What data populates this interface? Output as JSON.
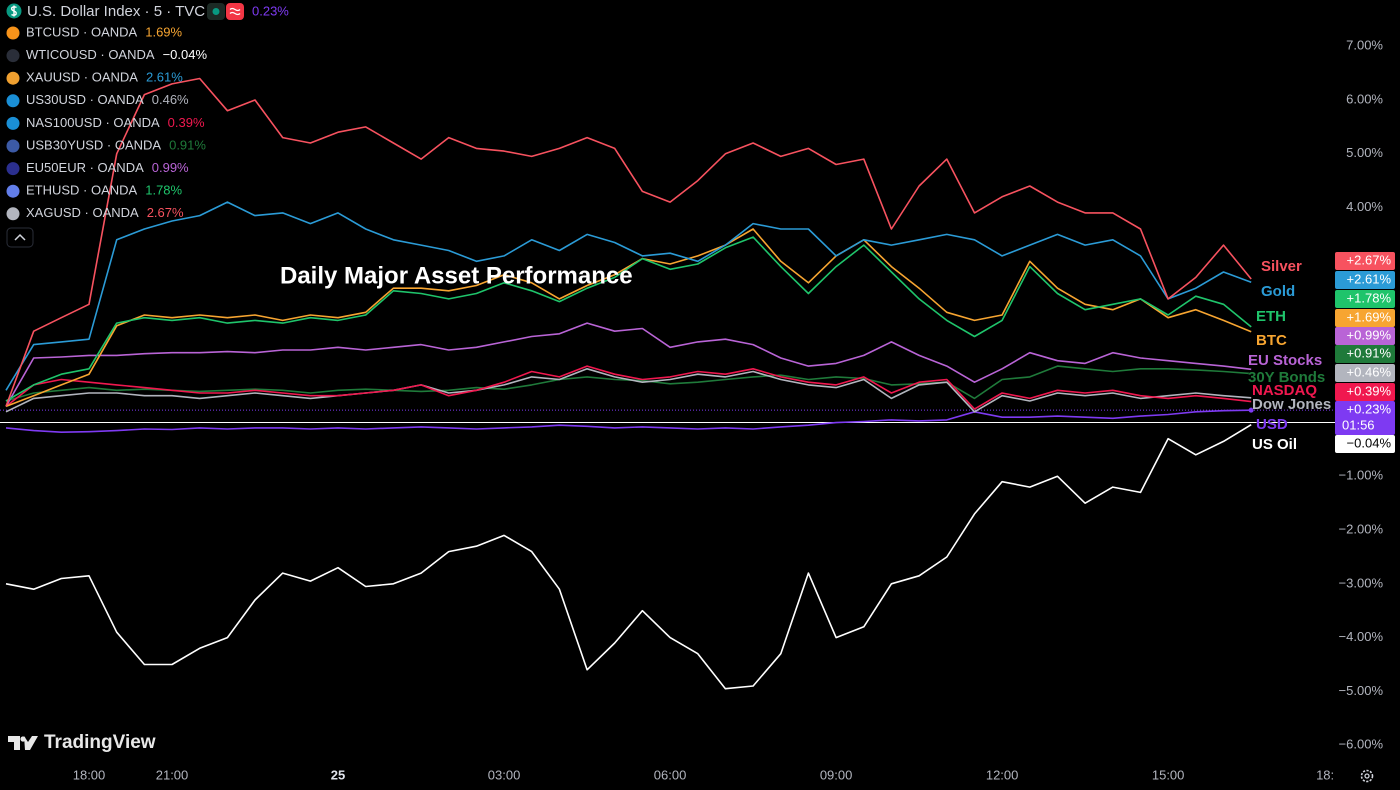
{
  "chart_data": {
    "type": "line",
    "title": "U.S. Dollar Index · 5 · TVC",
    "annotation": "Daily Major Asset Performance",
    "watermark": "TradingView",
    "categories": [
      null,
      null,
      null,
      "18:00",
      null,
      null,
      "21:00",
      null,
      null,
      null,
      null,
      null,
      "25",
      null,
      null,
      null,
      null,
      null,
      "03:00",
      null,
      null,
      null,
      null,
      null,
      "06:00",
      null,
      null,
      null,
      null,
      null,
      "09:00",
      null,
      null,
      null,
      null,
      null,
      "12:00",
      null,
      null,
      null,
      null,
      null,
      "15:00",
      null,
      null,
      null,
      null,
      null,
      "18:"
    ],
    "ylim": [
      -6.37,
      7.86
    ],
    "yticks": [
      {
        "value": 7,
        "label": "7.00%"
      },
      {
        "value": 6,
        "label": "6.00%"
      },
      {
        "value": 5,
        "label": "5.00%"
      },
      {
        "value": 4,
        "label": "4.00%"
      },
      {
        "value": -1,
        "label": "−1.00%"
      },
      {
        "value": -2,
        "label": "−2.00%"
      },
      {
        "value": -3,
        "label": "−3.00%"
      },
      {
        "value": -4,
        "label": "−4.00%"
      },
      {
        "value": -5,
        "label": "−5.00%"
      },
      {
        "value": -6,
        "label": "−6.00%"
      }
    ],
    "grid": false,
    "series": [
      {
        "name": "USD",
        "color": "#7e3af2",
        "legend_label": "0.23%",
        "price_label": "+0.23%",
        "countdown": "01:56",
        "values": [
          -0.1,
          -0.15,
          -0.18,
          -0.17,
          -0.15,
          -0.12,
          -0.13,
          -0.1,
          -0.12,
          -0.1,
          -0.1,
          -0.12,
          -0.1,
          -0.12,
          -0.1,
          -0.08,
          -0.1,
          -0.12,
          -0.1,
          -0.08,
          -0.05,
          -0.07,
          -0.1,
          -0.08,
          -0.1,
          -0.12,
          -0.1,
          -0.12,
          -0.08,
          -0.05,
          0.0,
          0.02,
          0.05,
          0.03,
          0.05,
          0.2,
          0.1,
          0.1,
          0.12,
          0.1,
          0.08,
          0.12,
          0.15,
          0.2,
          0.22,
          0.23,
          null,
          null,
          null
        ]
      },
      {
        "name": "BTC",
        "symbol": "BTCUSD · OANDA",
        "color": "#f7a531",
        "legend_label": "1.69%",
        "price_label": "+1.69%",
        "values": [
          0.3,
          0.5,
          0.7,
          0.9,
          1.8,
          2.0,
          1.95,
          2.0,
          1.95,
          2.0,
          1.9,
          2.0,
          1.95,
          2.05,
          2.5,
          2.5,
          2.45,
          2.55,
          2.75,
          2.6,
          2.3,
          2.55,
          2.75,
          3.05,
          2.95,
          3.1,
          3.3,
          3.6,
          3.0,
          2.6,
          3.1,
          3.4,
          2.9,
          2.5,
          2.05,
          1.9,
          2.0,
          3.0,
          2.5,
          2.2,
          2.1,
          2.3,
          1.95,
          2.1,
          1.9,
          1.69,
          null,
          null,
          null
        ]
      },
      {
        "name": "US Oil",
        "symbol": "WTICOUSD · OANDA",
        "color": "#ffffff",
        "legend_label": "−0.04%",
        "price_label": "−0.04%",
        "values": [
          -3.0,
          -3.1,
          -2.9,
          -2.85,
          -3.9,
          -4.5,
          -4.5,
          -4.2,
          -4.0,
          -3.3,
          -2.8,
          -2.95,
          -2.7,
          -3.05,
          -3.0,
          -2.8,
          -2.4,
          -2.3,
          -2.1,
          -2.4,
          -3.1,
          -4.6,
          -4.1,
          -3.5,
          -4.0,
          -4.3,
          -4.95,
          -4.9,
          -4.3,
          -2.8,
          -4.0,
          -3.8,
          -3.0,
          -2.85,
          -2.5,
          -1.7,
          -1.1,
          -1.2,
          -1.0,
          -1.5,
          -1.2,
          -1.3,
          -0.3,
          -0.6,
          -0.35,
          -0.04,
          null,
          null,
          null
        ]
      },
      {
        "name": "Gold",
        "symbol": "XAUUSD · OANDA",
        "color": "#2b9bd6",
        "legend_label": "2.61%",
        "price_label": "+2.61%",
        "values": [
          0.6,
          1.45,
          1.5,
          1.55,
          3.4,
          3.6,
          3.75,
          3.85,
          4.1,
          3.85,
          3.9,
          3.7,
          3.9,
          3.6,
          3.4,
          3.3,
          3.2,
          3.0,
          3.1,
          3.4,
          3.2,
          3.5,
          3.35,
          3.1,
          3.15,
          3.0,
          3.3,
          3.7,
          3.6,
          3.6,
          3.1,
          3.4,
          3.3,
          3.4,
          3.5,
          3.4,
          3.1,
          3.3,
          3.5,
          3.3,
          3.4,
          3.1,
          2.3,
          2.5,
          2.8,
          2.61,
          null,
          null,
          null
        ]
      },
      {
        "name": "Dow Jones",
        "symbol": "US30USD · OANDA",
        "color": "#b2b5be",
        "legend_label": "0.46%",
        "price_label": "+0.46%",
        "values": [
          0.2,
          0.45,
          0.5,
          0.55,
          0.55,
          0.5,
          0.5,
          0.45,
          0.5,
          0.55,
          0.5,
          0.45,
          0.5,
          0.55,
          0.6,
          0.7,
          0.55,
          0.6,
          0.7,
          0.85,
          0.8,
          1.0,
          0.85,
          0.75,
          0.8,
          0.9,
          0.85,
          0.95,
          0.8,
          0.7,
          0.65,
          0.8,
          0.45,
          0.7,
          0.75,
          0.2,
          0.5,
          0.4,
          0.55,
          0.5,
          0.55,
          0.45,
          0.5,
          0.55,
          0.5,
          0.46,
          null,
          null,
          null
        ]
      },
      {
        "name": "NASDAQ",
        "symbol": "NAS100USD · OANDA",
        "color": "#f0184f",
        "legend_label": "0.39%",
        "price_label": "+0.39%",
        "values": [
          0.3,
          0.7,
          0.8,
          0.75,
          0.7,
          0.65,
          0.6,
          0.55,
          0.55,
          0.6,
          0.55,
          0.5,
          0.5,
          0.55,
          0.6,
          0.7,
          0.5,
          0.6,
          0.75,
          0.95,
          0.85,
          1.05,
          0.9,
          0.8,
          0.85,
          0.95,
          0.9,
          1.0,
          0.85,
          0.75,
          0.7,
          0.85,
          0.55,
          0.75,
          0.8,
          0.25,
          0.55,
          0.45,
          0.6,
          0.55,
          0.6,
          0.5,
          0.45,
          0.5,
          0.45,
          0.39,
          null,
          null,
          null
        ]
      },
      {
        "name": "30Y Bonds",
        "symbol": "USB30YUSD · OANDA",
        "color": "#1f7a3a",
        "legend_label": "0.91%",
        "price_label": "+0.91%",
        "values": [
          0.4,
          0.55,
          0.6,
          0.65,
          0.6,
          0.62,
          0.6,
          0.58,
          0.6,
          0.62,
          0.6,
          0.55,
          0.6,
          0.62,
          0.6,
          0.58,
          0.6,
          0.65,
          0.62,
          0.7,
          0.8,
          0.85,
          0.8,
          0.78,
          0.72,
          0.75,
          0.8,
          0.85,
          0.88,
          0.8,
          0.85,
          0.82,
          0.7,
          0.72,
          0.75,
          0.45,
          0.8,
          0.85,
          1.05,
          1.0,
          0.95,
          1.0,
          1.0,
          0.98,
          0.95,
          0.91,
          null,
          null,
          null
        ]
      },
      {
        "name": "EU Stocks",
        "symbol": "EU50EUR · OANDA",
        "color": "#b964d6",
        "legend_label": "0.99%",
        "price_label": "+0.99%",
        "values": [
          0.3,
          1.2,
          1.22,
          1.25,
          1.25,
          1.28,
          1.3,
          1.3,
          1.32,
          1.3,
          1.35,
          1.35,
          1.4,
          1.35,
          1.4,
          1.45,
          1.35,
          1.4,
          1.5,
          1.6,
          1.65,
          1.85,
          1.7,
          1.75,
          1.4,
          1.5,
          1.55,
          1.45,
          1.2,
          1.05,
          1.1,
          1.25,
          1.5,
          1.25,
          1.05,
          0.75,
          1.0,
          1.3,
          1.15,
          1.1,
          1.3,
          1.2,
          1.15,
          1.1,
          1.05,
          0.99,
          null,
          null,
          null
        ]
      },
      {
        "name": "ETH",
        "symbol": "ETHUSD · OANDA",
        "color": "#1fc46b",
        "legend_label": "1.78%",
        "price_label": "+1.78%",
        "values": [
          0.4,
          0.7,
          0.9,
          1.0,
          1.85,
          1.95,
          1.9,
          1.95,
          1.85,
          1.9,
          1.85,
          1.95,
          1.9,
          2.0,
          2.45,
          2.4,
          2.3,
          2.4,
          2.6,
          2.45,
          2.25,
          2.5,
          2.7,
          3.05,
          2.85,
          2.95,
          3.25,
          3.45,
          2.9,
          2.4,
          2.9,
          3.3,
          2.8,
          2.3,
          1.9,
          1.6,
          1.9,
          2.9,
          2.4,
          2.1,
          2.2,
          2.3,
          2.0,
          2.35,
          2.2,
          1.78,
          null,
          null,
          null
        ]
      },
      {
        "name": "Silver",
        "symbol": "XAGUSD · OANDA",
        "color": "#f7525f",
        "legend_label": "2.67%",
        "price_label": "+2.67%",
        "values": [
          0.3,
          1.7,
          1.95,
          2.2,
          5.0,
          6.1,
          6.3,
          6.4,
          5.8,
          6.0,
          5.3,
          5.2,
          5.4,
          5.5,
          5.2,
          4.9,
          5.3,
          5.1,
          5.05,
          4.95,
          5.1,
          5.3,
          5.1,
          4.3,
          4.1,
          4.5,
          5.0,
          5.2,
          4.95,
          5.1,
          4.8,
          4.9,
          3.6,
          4.4,
          4.9,
          3.9,
          4.2,
          4.4,
          4.1,
          3.9,
          3.9,
          3.6,
          2.3,
          2.7,
          3.3,
          2.67,
          null,
          null,
          null
        ]
      }
    ]
  }
}
